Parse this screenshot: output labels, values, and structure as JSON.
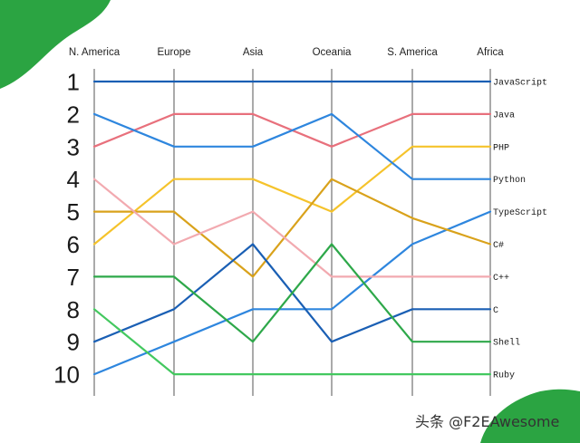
{
  "chart_data": {
    "type": "line",
    "subtype": "bump",
    "categories": [
      "N. America",
      "Europe",
      "Asia",
      "Oceania",
      "S. America",
      "Africa"
    ],
    "ranks": [
      "1",
      "2",
      "3",
      "4",
      "5",
      "6",
      "7",
      "8",
      "9",
      "10"
    ],
    "y_axis": {
      "reversed": true,
      "range": [
        1,
        10
      ]
    },
    "grid": "vertical lines at each region",
    "legend": "series names labeled at right end of each line",
    "series": [
      {
        "name": "JavaScript",
        "color": "#1a5fb4",
        "values": [
          1,
          1,
          1,
          1,
          1,
          1
        ]
      },
      {
        "name": "Java",
        "color": "#e8707c",
        "values": [
          3,
          2,
          2,
          3,
          2,
          2
        ]
      },
      {
        "name": "PHP",
        "color": "#f5c32b",
        "values": [
          6,
          4,
          4,
          5,
          3,
          3
        ]
      },
      {
        "name": "Python",
        "color": "#2e86de",
        "values": [
          2,
          3,
          3,
          2,
          4,
          4
        ]
      },
      {
        "name": "TypeScript",
        "color": "#2e86de",
        "values": [
          10,
          9,
          8,
          8,
          6,
          5
        ]
      },
      {
        "name": "C#",
        "color": "#d9a21b",
        "values": [
          5,
          5,
          7,
          4,
          5.2,
          6
        ]
      },
      {
        "name": "C++",
        "color": "#f2aab0",
        "values": [
          4,
          6,
          5,
          7,
          7,
          7
        ]
      },
      {
        "name": "C",
        "color": "#1a5fb4",
        "values": [
          9,
          8,
          6,
          9,
          8,
          8
        ]
      },
      {
        "name": "Shell",
        "color": "#2ea84a",
        "values": [
          7,
          7,
          9,
          6,
          9,
          9
        ]
      },
      {
        "name": "Ruby",
        "color": "#43c85f",
        "values": [
          8,
          10,
          10,
          10,
          10,
          10
        ]
      }
    ]
  },
  "colors": {
    "blob": "#2ba442",
    "axis": "#555555"
  },
  "watermark": "头条 @F2EAwesome"
}
